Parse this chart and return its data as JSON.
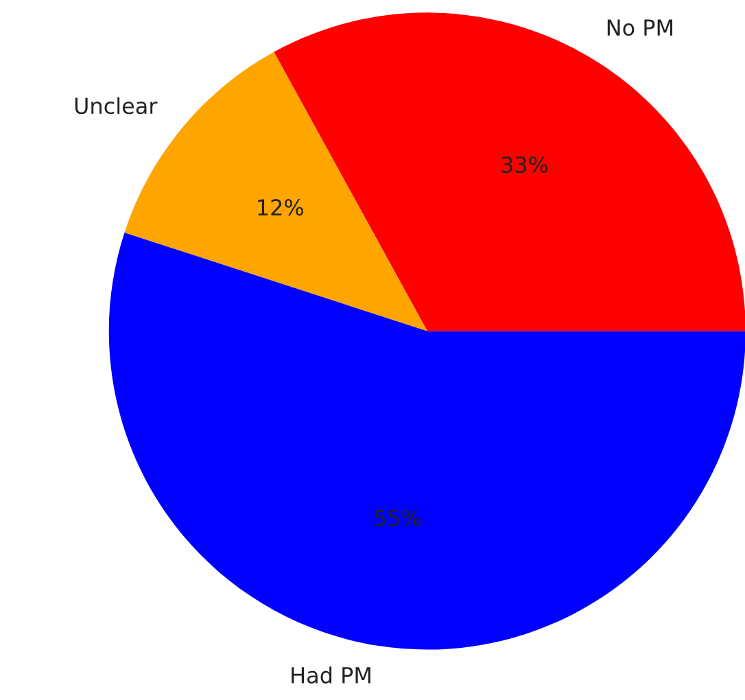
{
  "chart_data": {
    "type": "pie",
    "categories": [
      "No PM",
      "Unclear",
      "Had PM"
    ],
    "values": [
      33,
      12,
      55
    ],
    "colors": [
      "#ff0000",
      "#ffa500",
      "#0000ff"
    ],
    "value_labels": [
      "33%",
      "12%",
      "55%"
    ]
  }
}
